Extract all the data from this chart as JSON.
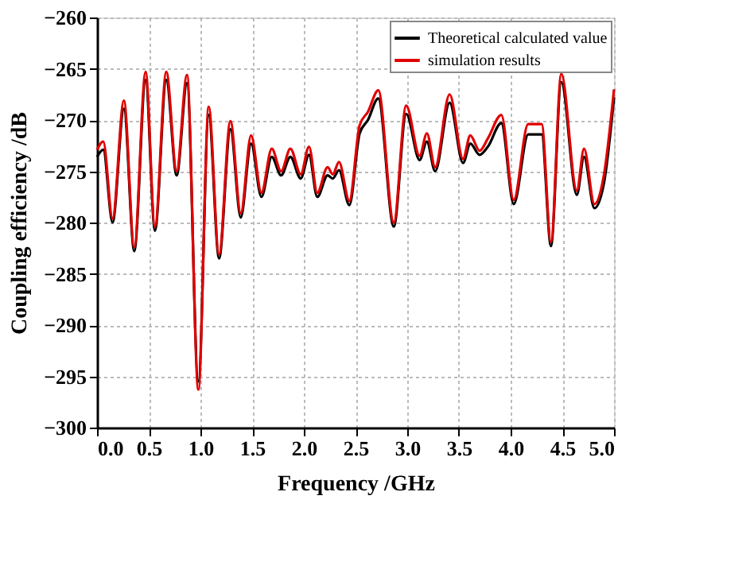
{
  "chart_data": {
    "type": "line",
    "xlabel": "Frequency /GHz",
    "ylabel": "Coupling efficiency /dB",
    "x": [
      0.0,
      0.06,
      0.15,
      0.26,
      0.36,
      0.47,
      0.56,
      0.67,
      0.77,
      0.87,
      0.98,
      1.08,
      1.18,
      1.29,
      1.39,
      1.49,
      1.59,
      1.69,
      1.78,
      1.87,
      1.97,
      2.05,
      2.13,
      2.23,
      2.28,
      2.34,
      2.44,
      2.54,
      2.62,
      2.72,
      2.87,
      2.99,
      3.12,
      3.19,
      3.27,
      3.41,
      3.54,
      3.61,
      3.7,
      3.78,
      3.91,
      4.03,
      4.17,
      4.3,
      4.39,
      4.49,
      4.64,
      4.71,
      4.81,
      4.9,
      5.0
    ],
    "series": [
      {
        "name": "Theoretical calculated value",
        "color": "#000000",
        "values": [
          -273.6,
          -272.9,
          -280,
          -268.9,
          -282.8,
          -266.1,
          -280.8,
          -266.1,
          -275.4,
          -266.4,
          -295.5,
          -269.5,
          -283.5,
          -270.9,
          -279.5,
          -272.3,
          -277.5,
          -273.6,
          -275.4,
          -273.6,
          -275.7,
          -273.4,
          -277.5,
          -275.4,
          -275.7,
          -274.9,
          -278.3,
          -271.3,
          -270,
          -267.9,
          -280.4,
          -269.4,
          -273.9,
          -272.1,
          -275,
          -268.3,
          -274.2,
          -272.3,
          -273.4,
          -272.6,
          -270.3,
          -278.2,
          -271.4,
          -271.4,
          -282.3,
          -266.3,
          -277.3,
          -273.6,
          -278.6,
          -276.3,
          -267.8
        ]
      },
      {
        "name": "simulation results",
        "color": "#e00000",
        "values": [
          -272.9,
          -272.1,
          -279.6,
          -268.1,
          -282.4,
          -265.3,
          -280.4,
          -265.3,
          -275.0,
          -265.6,
          -296.3,
          -268.7,
          -283.1,
          -270.1,
          -279.1,
          -271.5,
          -277.1,
          -272.8,
          -275.0,
          -272.8,
          -275.3,
          -272.6,
          -277.1,
          -274.6,
          -275.3,
          -274.1,
          -277.9,
          -270.5,
          -269.2,
          -267.1,
          -280.0,
          -268.6,
          -273.5,
          -271.3,
          -274.6,
          -267.5,
          -273.8,
          -271.5,
          -273.0,
          -271.8,
          -269.5,
          -277.8,
          -270.4,
          -270.4,
          -281.9,
          -265.5,
          -276.9,
          -272.8,
          -278.2,
          -275.5,
          -267.0
        ]
      }
    ],
    "xlim": [
      0,
      5
    ],
    "xticks": [
      {
        "value": 0,
        "label": "0.0"
      },
      0.5,
      {
        "value": 1,
        "label": "1.0"
      },
      1.5,
      {
        "value": 2,
        "label": "2.0"
      },
      2.5,
      {
        "value": 3,
        "label": "3.0"
      },
      3.5,
      {
        "value": 4,
        "label": "4.0"
      },
      4.5,
      {
        "value": 5,
        "label": "5.0"
      }
    ],
    "ylim": [
      -300,
      -260
    ],
    "yticks": [
      -300,
      -295,
      -290,
      -285,
      -280,
      -275,
      -270,
      -265,
      -260
    ],
    "grid": true,
    "legend": "top right",
    "marker": "none",
    "line_style": "solid"
  }
}
